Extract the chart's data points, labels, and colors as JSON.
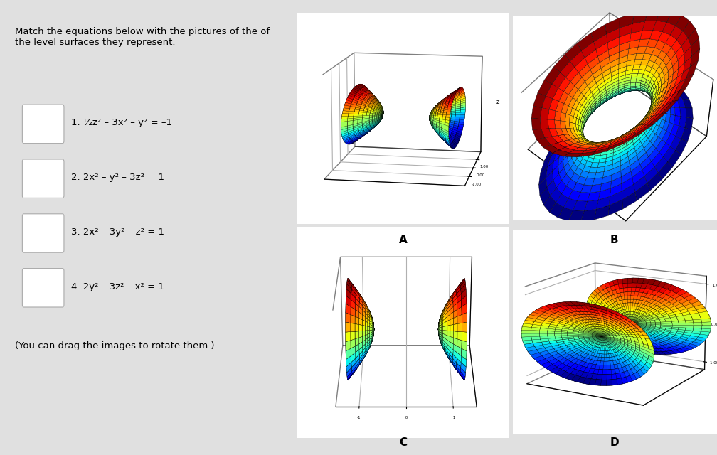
{
  "bg_color": "#e0e0e0",
  "title_text": "Match the equations below with the pictures of the of\nthe level surfaces they represent.",
  "equations": [
    "1. ½z² – 3x² – y² = –1",
    "2. 2x² – y² – 3z² = 1",
    "3. 2x² – 3y² – z² = 1",
    "4. 2y² – 3z² – x² = 1"
  ],
  "drag_note": "(You can drag the images to rotate them.)",
  "labels": [
    "A",
    "B",
    "C",
    "D"
  ],
  "cmap": "jet"
}
